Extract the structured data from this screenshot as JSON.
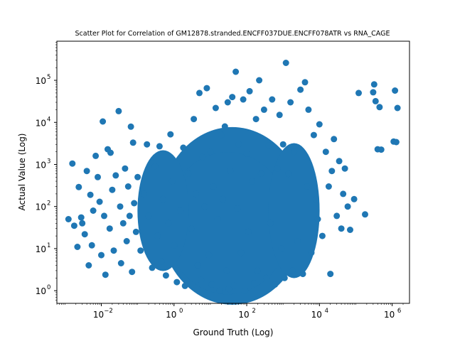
{
  "chart_data": {
    "type": "scatter",
    "title": "Scatter Plot for Correlation of GM12878.stranded.ENCFF037DUE.ENCFF078ATR vs RNA_CAGE",
    "xlabel": "Ground Truth (Log)",
    "ylabel": "Actual Value (Log)",
    "x_scale": "log",
    "y_scale": "log",
    "xlim": [
      0.0006,
      3000000
    ],
    "ylim": [
      0.5,
      850000
    ],
    "grid": false,
    "marker_color": "#1f77b4",
    "x_ticks": [
      {
        "value": 0.01,
        "base": "10",
        "exp": "−2"
      },
      {
        "value": 1,
        "base": "10",
        "exp": "0"
      },
      {
        "value": 100,
        "base": "10",
        "exp": "2"
      },
      {
        "value": 10000,
        "base": "10",
        "exp": "4"
      },
      {
        "value": 1000000,
        "base": "10",
        "exp": "6"
      }
    ],
    "y_ticks": [
      {
        "value": 1,
        "base": "10",
        "exp": "0"
      },
      {
        "value": 10,
        "base": "10",
        "exp": "1"
      },
      {
        "value": 100,
        "base": "10",
        "exp": "2"
      },
      {
        "value": 1000,
        "base": "10",
        "exp": "3"
      },
      {
        "value": 10000,
        "base": "10",
        "exp": "4"
      },
      {
        "value": 100000,
        "base": "10",
        "exp": "5"
      }
    ],
    "points": [
      [
        0.00125,
        50
      ],
      [
        0.0016,
        1050
      ],
      [
        0.0018,
        35
      ],
      [
        0.0022,
        11
      ],
      [
        0.0024,
        290
      ],
      [
        0.0028,
        55
      ],
      [
        0.003,
        40
      ],
      [
        0.0035,
        22
      ],
      [
        0.004,
        700
      ],
      [
        0.0045,
        4
      ],
      [
        0.005,
        190
      ],
      [
        0.0055,
        12
      ],
      [
        0.006,
        80
      ],
      [
        0.007,
        1600
      ],
      [
        0.008,
        500
      ],
      [
        0.009,
        130
      ],
      [
        0.01,
        7
      ],
      [
        0.011,
        10500
      ],
      [
        0.012,
        60
      ],
      [
        0.013,
        2.4
      ],
      [
        0.015,
        2300
      ],
      [
        0.017,
        30
      ],
      [
        0.018,
        1900
      ],
      [
        0.02,
        250
      ],
      [
        0.022,
        9
      ],
      [
        0.025,
        550
      ],
      [
        0.03,
        18500
      ],
      [
        0.033,
        100
      ],
      [
        0.035,
        4.5
      ],
      [
        0.04,
        40
      ],
      [
        0.045,
        800
      ],
      [
        0.05,
        15
      ],
      [
        0.055,
        300
      ],
      [
        0.06,
        60
      ],
      [
        0.065,
        7900
      ],
      [
        0.07,
        2.8
      ],
      [
        0.075,
        3300
      ],
      [
        0.08,
        120
      ],
      [
        0.09,
        25
      ],
      [
        0.1,
        500
      ],
      [
        0.12,
        9
      ],
      [
        0.15,
        200
      ],
      [
        0.18,
        3000
      ],
      [
        0.2,
        60
      ],
      [
        0.25,
        3.5
      ],
      [
        0.3,
        900
      ],
      [
        0.35,
        20
      ],
      [
        0.4,
        2700
      ],
      [
        0.45,
        5
      ],
      [
        0.5,
        150
      ],
      [
        0.6,
        2.3
      ],
      [
        0.7,
        40
      ],
      [
        0.8,
        5200
      ],
      [
        0.9,
        400
      ],
      [
        1.0,
        12
      ],
      [
        1.2,
        1.6
      ],
      [
        1.5,
        80
      ],
      [
        1.8,
        2500
      ],
      [
        2.0,
        1.3
      ],
      [
        2.5,
        600
      ],
      [
        3,
        30
      ],
      [
        3.5,
        12000
      ],
      [
        4,
        200
      ],
      [
        4.5,
        4
      ],
      [
        5,
        50000
      ],
      [
        5.5,
        1.8
      ],
      [
        6,
        1500
      ],
      [
        7,
        100
      ],
      [
        8,
        65000
      ],
      [
        9,
        7
      ],
      [
        10,
        2000
      ],
      [
        11,
        1.4
      ],
      [
        12,
        300
      ],
      [
        14,
        22000
      ],
      [
        16,
        50
      ],
      [
        18,
        1.0
      ],
      [
        20,
        5000
      ],
      [
        22,
        150
      ],
      [
        25,
        8000
      ],
      [
        28,
        3
      ],
      [
        30,
        30000
      ],
      [
        32,
        1.1
      ],
      [
        35,
        700
      ],
      [
        40,
        40000
      ],
      [
        45,
        1.3
      ],
      [
        50,
        160000
      ],
      [
        55,
        90
      ],
      [
        60,
        3000
      ],
      [
        70,
        8
      ],
      [
        80,
        35000
      ],
      [
        90,
        1.0
      ],
      [
        100,
        1800
      ],
      [
        110,
        25
      ],
      [
        120,
        55000
      ],
      [
        140,
        400
      ],
      [
        160,
        1.5
      ],
      [
        180,
        12000
      ],
      [
        200,
        3
      ],
      [
        220,
        100000
      ],
      [
        250,
        600
      ],
      [
        300,
        20000
      ],
      [
        350,
        2
      ],
      [
        400,
        2800
      ],
      [
        450,
        40
      ],
      [
        500,
        35000
      ],
      [
        600,
        1.4
      ],
      [
        700,
        800
      ],
      [
        800,
        15000
      ],
      [
        900,
        10
      ],
      [
        1000,
        3000
      ],
      [
        1100,
        2
      ],
      [
        1200,
        260000
      ],
      [
        1400,
        600
      ],
      [
        1600,
        30000
      ],
      [
        1800,
        3
      ],
      [
        2000,
        2000
      ],
      [
        2500,
        15
      ],
      [
        3000,
        60000
      ],
      [
        3500,
        2.5
      ],
      [
        4000,
        90000
      ],
      [
        4500,
        300
      ],
      [
        5000,
        20000
      ],
      [
        6000,
        8
      ],
      [
        7000,
        5000
      ],
      [
        8000,
        150
      ],
      [
        9000,
        50
      ],
      [
        10000,
        9000
      ],
      [
        12000,
        20
      ],
      [
        15000,
        2000
      ],
      [
        18000,
        300
      ],
      [
        20000,
        2.5
      ],
      [
        22000,
        700
      ],
      [
        25000,
        4000
      ],
      [
        30000,
        60
      ],
      [
        35000,
        1200
      ],
      [
        40000,
        30
      ],
      [
        45000,
        200
      ],
      [
        50000,
        800
      ],
      [
        60000,
        100
      ],
      [
        70000,
        28
      ],
      [
        90000,
        150
      ],
      [
        120000,
        50000
      ],
      [
        180000,
        65
      ],
      [
        300000,
        52000
      ],
      [
        320000,
        80000
      ],
      [
        350000,
        32000
      ],
      [
        400000,
        2300
      ],
      [
        450000,
        23000
      ],
      [
        500000,
        2250
      ],
      [
        1100000,
        3500
      ],
      [
        1200000,
        57000
      ],
      [
        1300000,
        3400
      ],
      [
        1400000,
        22000
      ]
    ]
  }
}
